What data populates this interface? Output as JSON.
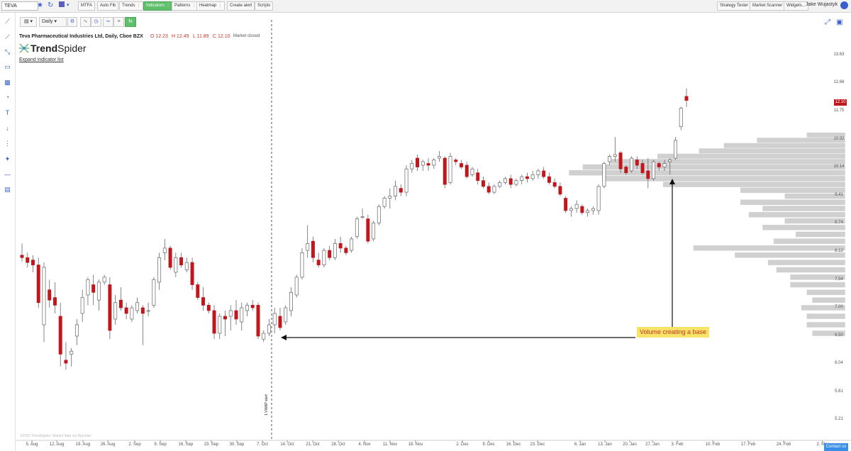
{
  "toolbar": {
    "symbol": "TEVA",
    "buttons": [
      {
        "label": "MTFA",
        "active": false
      },
      {
        "label": "Auto Fib",
        "active": false
      },
      {
        "label": "Trends",
        "active": false
      },
      {
        "label": "Indicators",
        "active": true
      },
      {
        "label": "Patterns",
        "active": false
      },
      {
        "label": "Heatmap",
        "active": false
      },
      {
        "label": "Create alert",
        "active": false
      },
      {
        "label": "Scripts",
        "active": false
      }
    ],
    "right_buttons": [
      "Strategy Tester",
      "Market Scanner",
      "Widgets..."
    ],
    "user_name": "Jake Wujastyk"
  },
  "chart_toolbar": {
    "timeframe": "Daily"
  },
  "header": {
    "title": "Teva Pharmaceutical Industries Ltd, Daily, Cboe BZX",
    "open": "O 12.23",
    "high": "H 12.49",
    "low": "L 11.89",
    "close": "C 12.10",
    "status": "Market closed",
    "expand_label": "Expand indicator list"
  },
  "logo": {
    "bold": "Trend",
    "regular": "Spider"
  },
  "annotation": "Volume creating a base",
  "vwap_label": "1 VWAP start",
  "watermark": "©2020 TrendSpider. Market data via Barchart",
  "contact_label": "Contact us",
  "colors": {
    "up": "#ffffff",
    "down": "#c0171d",
    "neutral": "#888888",
    "profile": "#d0d0d0",
    "accent": "#3a5fcd"
  },
  "chart_data": {
    "type": "candlestick",
    "ylim": [
      5.0,
      14.0
    ],
    "y_ticks": [
      "13.63",
      "12.66",
      "11.75",
      "10.92",
      "10.14",
      "9.41",
      "8.74",
      "8.12",
      "7.54",
      "7.00",
      "6.50",
      "6.04",
      "5.61",
      "5.21"
    ],
    "x_ticks": [
      "5. Aug",
      "12. Aug",
      "19. Aug",
      "26. Aug",
      "2. Sep",
      "9. Sep",
      "16. Sep",
      "23. Sep",
      "30. Sep",
      "7. Oct",
      "14. Oct",
      "21. Oct",
      "28. Oct",
      "4. Nov",
      "11. Nov",
      "18. Nov",
      "2. Dec",
      "9. Dec",
      "16. Dec",
      "23. Dec",
      "6. Jan",
      "13. Jan",
      "20. Jan",
      "27. Jan",
      "3. Feb",
      "10. Feb",
      "17. Feb",
      "24. Feb",
      "2. Mar"
    ],
    "last_price": "12.10",
    "candles": [
      [
        8.05,
        8.3,
        7.92,
        8.0
      ],
      [
        8.0,
        8.1,
        7.8,
        7.9
      ],
      [
        7.95,
        8.05,
        7.7,
        7.85
      ],
      [
        7.85,
        8.0,
        7.0,
        7.1
      ],
      [
        6.7,
        7.9,
        6.4,
        7.8
      ],
      [
        7.35,
        7.55,
        7.0,
        7.15
      ],
      [
        7.2,
        7.5,
        6.9,
        7.05
      ],
      [
        6.85,
        7.1,
        6.0,
        6.2
      ],
      [
        6.1,
        6.4,
        5.95,
        6.05
      ],
      [
        6.2,
        6.3,
        6.0,
        6.25
      ],
      [
        6.5,
        6.8,
        6.35,
        6.7
      ],
      [
        6.9,
        7.35,
        6.75,
        7.2
      ],
      [
        7.25,
        7.6,
        7.05,
        7.55
      ],
      [
        7.45,
        7.65,
        7.05,
        7.3
      ],
      [
        7.15,
        7.55,
        6.95,
        7.5
      ],
      [
        7.5,
        7.65,
        7.45,
        7.6
      ],
      [
        7.45,
        7.6,
        6.45,
        6.6
      ],
      [
        6.8,
        7.25,
        6.7,
        7.1
      ],
      [
        7.15,
        7.4,
        6.95,
        7.0
      ],
      [
        7.0,
        7.1,
        6.8,
        6.9
      ],
      [
        6.8,
        7.05,
        6.75,
        7.0
      ],
      [
        6.95,
        7.2,
        6.9,
        7.1
      ],
      [
        7.0,
        7.05,
        6.35,
        6.9
      ],
      [
        6.95,
        7.1,
        6.85,
        6.95
      ],
      [
        7.05,
        7.6,
        7.0,
        7.55
      ],
      [
        7.5,
        8.1,
        7.35,
        8.0
      ],
      [
        8.1,
        8.4,
        7.95,
        8.2
      ],
      [
        8.2,
        8.25,
        7.75,
        7.8
      ],
      [
        7.7,
        8.1,
        7.6,
        8.0
      ],
      [
        8.0,
        8.1,
        7.8,
        7.85
      ],
      [
        7.75,
        8.0,
        7.7,
        7.9
      ],
      [
        7.9,
        8.0,
        7.35,
        7.45
      ],
      [
        7.45,
        7.5,
        7.15,
        7.2
      ],
      [
        7.2,
        7.4,
        6.95,
        7.05
      ],
      [
        7.05,
        7.1,
        6.9,
        6.95
      ],
      [
        6.95,
        7.05,
        6.45,
        6.55
      ],
      [
        6.55,
        6.9,
        6.45,
        6.85
      ],
      [
        6.85,
        6.95,
        6.5,
        6.8
      ],
      [
        6.85,
        7.05,
        6.6,
        6.95
      ],
      [
        6.95,
        7.15,
        6.7,
        6.8
      ],
      [
        6.75,
        7.1,
        6.6,
        7.0
      ],
      [
        6.95,
        7.1,
        6.85,
        7.05
      ],
      [
        7.05,
        7.15,
        6.95,
        7.0
      ],
      [
        7.05,
        7.1,
        6.45,
        6.5
      ],
      [
        6.45,
        6.6,
        6.4,
        6.55
      ],
      [
        6.55,
        6.8,
        6.5,
        6.7
      ],
      [
        6.7,
        7.0,
        6.55,
        6.9
      ],
      [
        6.85,
        7.0,
        6.6,
        6.65
      ],
      [
        6.75,
        7.05,
        6.7,
        7.0
      ],
      [
        6.95,
        7.4,
        6.85,
        7.3
      ],
      [
        7.25,
        7.65,
        7.2,
        7.6
      ],
      [
        7.6,
        8.2,
        7.55,
        8.1
      ],
      [
        8.15,
        8.7,
        8.0,
        8.3
      ],
      [
        8.35,
        8.45,
        7.9,
        8.0
      ],
      [
        7.95,
        8.1,
        7.8,
        7.85
      ],
      [
        7.85,
        8.2,
        7.8,
        8.15
      ],
      [
        8.15,
        8.25,
        7.95,
        8.0
      ],
      [
        8.0,
        8.4,
        7.95,
        8.3
      ],
      [
        8.3,
        8.45,
        8.1,
        8.2
      ],
      [
        8.2,
        8.25,
        8.05,
        8.1
      ],
      [
        8.15,
        8.45,
        8.1,
        8.4
      ],
      [
        8.45,
        8.9,
        8.4,
        8.85
      ],
      [
        8.9,
        9.1,
        8.85,
        8.9
      ],
      [
        8.85,
        8.95,
        8.3,
        8.35
      ],
      [
        8.4,
        8.8,
        8.35,
        8.75
      ],
      [
        8.75,
        9.2,
        8.7,
        9.15
      ],
      [
        9.15,
        9.4,
        9.1,
        9.35
      ],
      [
        9.35,
        9.6,
        9.1,
        9.4
      ],
      [
        9.4,
        9.8,
        9.3,
        9.65
      ],
      [
        9.6,
        9.7,
        9.4,
        9.5
      ],
      [
        9.5,
        10.2,
        9.4,
        10.1
      ],
      [
        10.1,
        10.35,
        10.0,
        10.25
      ],
      [
        10.4,
        10.5,
        10.05,
        10.15
      ],
      [
        10.2,
        10.35,
        10.05,
        10.3
      ],
      [
        10.25,
        10.4,
        10.05,
        10.2
      ],
      [
        10.2,
        10.4,
        10.1,
        10.35
      ],
      [
        10.4,
        10.6,
        10.3,
        10.45
      ],
      [
        10.4,
        10.45,
        9.6,
        9.7
      ],
      [
        9.75,
        10.55,
        9.7,
        10.45
      ],
      [
        10.35,
        10.4,
        10.2,
        10.3
      ],
      [
        10.25,
        10.35,
        10.1,
        10.15
      ],
      [
        10.2,
        10.3,
        9.85,
        9.9
      ],
      [
        9.95,
        10.15,
        9.9,
        10.1
      ],
      [
        10.0,
        10.1,
        9.7,
        9.8
      ],
      [
        9.8,
        9.9,
        9.6,
        9.65
      ],
      [
        9.65,
        9.75,
        9.45,
        9.5
      ],
      [
        9.5,
        9.7,
        9.45,
        9.65
      ],
      [
        9.65,
        9.8,
        9.6,
        9.75
      ],
      [
        9.75,
        9.9,
        9.7,
        9.85
      ],
      [
        9.85,
        9.95,
        9.6,
        9.7
      ],
      [
        9.7,
        9.85,
        9.65,
        9.8
      ],
      [
        9.8,
        9.95,
        9.7,
        9.9
      ],
      [
        9.9,
        10.0,
        9.75,
        9.85
      ],
      [
        9.85,
        10.05,
        9.8,
        9.95
      ],
      [
        9.95,
        10.1,
        9.85,
        10.05
      ],
      [
        10.05,
        10.15,
        9.85,
        9.9
      ],
      [
        9.9,
        10.0,
        9.7,
        9.75
      ],
      [
        9.75,
        9.85,
        9.6,
        9.65
      ],
      [
        9.65,
        9.75,
        9.4,
        9.45
      ],
      [
        9.35,
        9.4,
        9.0,
        9.05
      ],
      [
        9.05,
        9.15,
        8.9,
        9.1
      ],
      [
        9.1,
        9.3,
        9.0,
        9.2
      ],
      [
        9.15,
        9.2,
        8.95,
        9.0
      ],
      [
        9.0,
        9.1,
        8.9,
        9.05
      ],
      [
        9.05,
        9.15,
        8.95,
        9.1
      ],
      [
        9.05,
        9.7,
        8.95,
        9.65
      ],
      [
        9.65,
        10.3,
        9.6,
        10.25
      ],
      [
        10.3,
        10.5,
        10.2,
        10.45
      ],
      [
        10.45,
        11.0,
        10.3,
        10.5
      ],
      [
        10.55,
        10.6,
        10.0,
        10.1
      ],
      [
        10.15,
        10.2,
        9.95,
        10.0
      ],
      [
        10.05,
        10.45,
        10.0,
        10.4
      ],
      [
        10.35,
        10.45,
        10.1,
        10.2
      ],
      [
        10.25,
        10.35,
        9.95,
        10.0
      ],
      [
        10.05,
        10.4,
        9.6,
        9.85
      ],
      [
        9.85,
        10.35,
        9.8,
        10.3
      ],
      [
        10.25,
        10.3,
        10.05,
        10.15
      ],
      [
        10.15,
        10.35,
        10.05,
        10.25
      ],
      [
        10.3,
        10.4,
        9.95,
        10.35
      ],
      [
        10.4,
        11.0,
        10.35,
        10.9
      ],
      [
        11.3,
        11.9,
        11.2,
        11.85
      ],
      [
        12.23,
        12.49,
        11.89,
        12.1
      ]
    ],
    "volume_profile": [
      {
        "price": 11.05,
        "width": 0.14
      },
      {
        "price": 10.9,
        "width": 0.32
      },
      {
        "price": 10.75,
        "width": 0.44
      },
      {
        "price": 10.6,
        "width": 0.53
      },
      {
        "price": 10.45,
        "width": 0.68
      },
      {
        "price": 10.3,
        "width": 0.85
      },
      {
        "price": 10.15,
        "width": 0.95
      },
      {
        "price": 10.0,
        "width": 1.0
      },
      {
        "price": 9.85,
        "width": 0.88
      },
      {
        "price": 9.7,
        "width": 0.66
      },
      {
        "price": 9.55,
        "width": 0.38
      },
      {
        "price": 9.4,
        "width": 0.22
      },
      {
        "price": 9.25,
        "width": 0.38
      },
      {
        "price": 9.1,
        "width": 0.3
      },
      {
        "price": 8.95,
        "width": 0.35
      },
      {
        "price": 8.8,
        "width": 0.22
      },
      {
        "price": 8.65,
        "width": 0.3
      },
      {
        "price": 8.5,
        "width": 0.18
      },
      {
        "price": 8.35,
        "width": 0.26
      },
      {
        "price": 8.2,
        "width": 0.55
      },
      {
        "price": 8.05,
        "width": 0.4
      },
      {
        "price": 7.9,
        "width": 0.28
      },
      {
        "price": 7.75,
        "width": 0.25
      },
      {
        "price": 7.6,
        "width": 0.2
      },
      {
        "price": 7.45,
        "width": 0.2
      },
      {
        "price": 7.3,
        "width": 0.14
      },
      {
        "price": 7.15,
        "width": 0.12
      },
      {
        "price": 7.0,
        "width": 0.16
      },
      {
        "price": 6.85,
        "width": 0.14
      },
      {
        "price": 6.7,
        "width": 0.14
      },
      {
        "price": 6.55,
        "width": 0.12
      }
    ]
  }
}
